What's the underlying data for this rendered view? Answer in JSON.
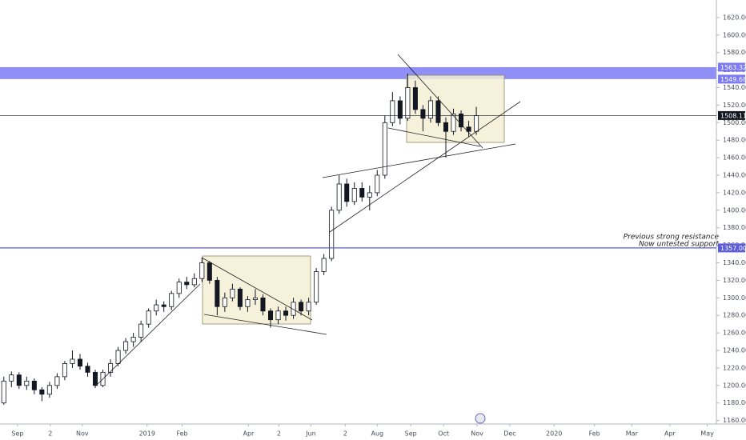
{
  "chart_data": {
    "type": "candlestick",
    "xlim": [
      0,
      94
    ],
    "ylim": [
      1156,
      1640
    ],
    "xticks": [
      {
        "value": 2.3,
        "label": "Sep"
      },
      {
        "value": 6.6,
        "label": "2"
      },
      {
        "value": 10.8,
        "label": "Nov"
      },
      {
        "value": 19.3,
        "label": "2019"
      },
      {
        "value": 23.9,
        "label": "Feb"
      },
      {
        "value": 32.6,
        "label": "Apr"
      },
      {
        "value": 36.6,
        "label": "2"
      },
      {
        "value": 40.8,
        "label": "Jun"
      },
      {
        "value": 45.3,
        "label": "2"
      },
      {
        "value": 49.5,
        "label": "Aug"
      },
      {
        "value": 53.9,
        "label": "Sep"
      },
      {
        "value": 58.2,
        "label": "Oct"
      },
      {
        "value": 62.6,
        "label": "Nov"
      },
      {
        "value": 66.9,
        "label": "Dec"
      },
      {
        "value": 72.7,
        "label": "2020"
      },
      {
        "value": 78,
        "label": "Feb"
      },
      {
        "value": 82.9,
        "label": "Mar"
      },
      {
        "value": 87.9,
        "label": "Apr"
      },
      {
        "value": 92.8,
        "label": "May"
      }
    ],
    "yticks": [
      {
        "value": 1160,
        "label": "1160.00"
      },
      {
        "value": 1180,
        "label": "1180.00"
      },
      {
        "value": 1200,
        "label": "1200.00"
      },
      {
        "value": 1220,
        "label": "1220.00"
      },
      {
        "value": 1240,
        "label": "1240.00"
      },
      {
        "value": 1260,
        "label": "1260.00"
      },
      {
        "value": 1280,
        "label": "1280.00"
      },
      {
        "value": 1300,
        "label": "1300.00"
      },
      {
        "value": 1320,
        "label": "1320.00"
      },
      {
        "value": 1340,
        "label": "1340.00"
      },
      {
        "value": 1360,
        "label": "1360.00"
      },
      {
        "value": 1380,
        "label": "1380.00"
      },
      {
        "value": 1400,
        "label": "1400.00"
      },
      {
        "value": 1420,
        "label": "1420.00"
      },
      {
        "value": 1440,
        "label": "1440.00"
      },
      {
        "value": 1460,
        "label": "1460.00"
      },
      {
        "value": 1480,
        "label": "1480.00"
      },
      {
        "value": 1500,
        "label": "1500.00"
      },
      {
        "value": 1520,
        "label": "1520.00"
      },
      {
        "value": 1540,
        "label": "1540.00"
      },
      {
        "value": 1560,
        "label": "1560.00"
      },
      {
        "value": 1580,
        "label": "1580.00"
      },
      {
        "value": 1600,
        "label": "1600.00"
      },
      {
        "value": 1620,
        "label": "1620.00"
      }
    ],
    "grid": false,
    "up_color": "#ffffff",
    "down_color": "#131722",
    "band": {
      "low": 1549.68,
      "high": 1563.32,
      "color": "#7b7bf5"
    },
    "level": {
      "value": 1357,
      "label": "1357.00",
      "color": "#5b5bdc"
    },
    "price_line": {
      "value": 1508.11,
      "color": "#131722"
    },
    "annotations": [
      "Previous strong resistance",
      "Now untested support"
    ],
    "candles": {
      "x": [
        0.5,
        1.5,
        2.5,
        3.5,
        4.5,
        5.5,
        6.5,
        7.5,
        8.5,
        9.5,
        10.5,
        11.5,
        12.5,
        13.5,
        14.5,
        15.5,
        16.5,
        17.5,
        18.5,
        19.5,
        20.5,
        21.5,
        22.5,
        23.5,
        24.5,
        25.5,
        26.5,
        27.5,
        28.5,
        29.5,
        30.5,
        31.5,
        32.5,
        33.5,
        34.5,
        35.5,
        36.5,
        37.5,
        38.5,
        39.5,
        40.5,
        41.5,
        42.5,
        43.5,
        44.5,
        45.5,
        46.5,
        47.5,
        48.5,
        49.5,
        50.5,
        51.5,
        52.5,
        53.5,
        54.5,
        55.5,
        56.5,
        57.5,
        58.5,
        59.5,
        60.5,
        61.5,
        62.5
      ],
      "open": [
        1180,
        1205,
        1212,
        1200,
        1205,
        1195,
        1190,
        1200,
        1210,
        1225,
        1230,
        1222,
        1215,
        1200,
        1215,
        1225,
        1240,
        1250,
        1255,
        1270,
        1285,
        1292,
        1290,
        1305,
        1318,
        1315,
        1322,
        1340,
        1320,
        1290,
        1300,
        1310,
        1290,
        1298,
        1300,
        1285,
        1275,
        1285,
        1280,
        1295,
        1285,
        1295,
        1330,
        1345,
        1400,
        1430,
        1410,
        1425,
        1415,
        1420,
        1440,
        1500,
        1525,
        1505,
        1540,
        1515,
        1505,
        1525,
        1500,
        1490,
        1510,
        1495,
        1490
      ],
      "high": [
        1210,
        1216,
        1215,
        1210,
        1208,
        1198,
        1204,
        1214,
        1228,
        1240,
        1236,
        1226,
        1218,
        1218,
        1230,
        1244,
        1254,
        1260,
        1274,
        1288,
        1298,
        1296,
        1308,
        1322,
        1324,
        1328,
        1346,
        1342,
        1324,
        1306,
        1316,
        1312,
        1302,
        1310,
        1304,
        1288,
        1290,
        1290,
        1300,
        1298,
        1300,
        1334,
        1350,
        1404,
        1440,
        1436,
        1432,
        1432,
        1428,
        1446,
        1508,
        1535,
        1530,
        1556,
        1548,
        1520,
        1530,
        1530,
        1506,
        1516,
        1514,
        1502,
        1518
      ],
      "low": [
        1178,
        1198,
        1196,
        1195,
        1190,
        1182,
        1186,
        1196,
        1206,
        1220,
        1218,
        1210,
        1197,
        1198,
        1210,
        1222,
        1236,
        1244,
        1250,
        1266,
        1280,
        1284,
        1286,
        1300,
        1310,
        1312,
        1318,
        1316,
        1280,
        1284,
        1296,
        1286,
        1284,
        1292,
        1280,
        1266,
        1270,
        1274,
        1276,
        1280,
        1280,
        1292,
        1326,
        1342,
        1396,
        1404,
        1406,
        1410,
        1400,
        1416,
        1436,
        1496,
        1498,
        1502,
        1510,
        1490,
        1500,
        1496,
        1460,
        1486,
        1490,
        1484,
        1486
      ],
      "close": [
        1205,
        1212,
        1200,
        1205,
        1195,
        1190,
        1200,
        1210,
        1225,
        1230,
        1222,
        1215,
        1200,
        1215,
        1225,
        1240,
        1250,
        1255,
        1270,
        1285,
        1292,
        1290,
        1305,
        1318,
        1315,
        1322,
        1340,
        1320,
        1290,
        1300,
        1310,
        1290,
        1298,
        1300,
        1285,
        1275,
        1285,
        1280,
        1295,
        1285,
        1295,
        1330,
        1345,
        1400,
        1430,
        1410,
        1425,
        1415,
        1420,
        1440,
        1500,
        1525,
        1505,
        1540,
        1515,
        1505,
        1525,
        1500,
        1490,
        1510,
        1495,
        1490,
        1508.11
      ]
    }
  }
}
